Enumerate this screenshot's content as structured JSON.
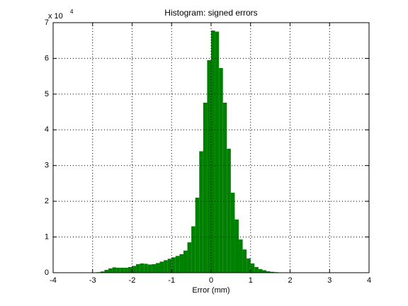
{
  "chart_data": {
    "type": "histogram",
    "title": "Histogram: signed errors",
    "x_label": "Error (mm)",
    "y_multiplier": "x 10",
    "y_multiplier_exponent": "4",
    "color": "#008000",
    "grid": true,
    "bins": [
      -4,
      -3.9,
      -3.8,
      -3.7,
      -3.6,
      -3.5,
      -3.4,
      -3.3,
      -3.2,
      -3.1,
      -3,
      -2.9,
      -2.8,
      -2.7,
      -2.6,
      -2.5,
      -2.4,
      -2.3,
      -2.2,
      -2.1,
      -2,
      -1.9,
      -1.8,
      -1.7,
      -1.6,
      -1.5,
      -1.4,
      -1.3,
      -1.2,
      -1.1,
      -1,
      -0.9,
      -0.8,
      -0.7,
      -0.6,
      -0.5,
      -0.4,
      -0.3,
      -0.2,
      -0.1,
      0,
      0.1,
      0.2,
      0.3,
      0.4,
      0.5,
      0.6,
      0.7,
      0.8,
      0.9,
      1,
      1.1,
      1.2,
      1.3,
      1.4,
      1.5,
      1.6,
      1.7,
      1.8,
      1.9,
      2,
      2.1,
      2.2,
      2.3,
      2.4,
      2.5,
      2.6,
      2.7,
      2.8,
      2.9,
      3,
      3.1,
      3.2,
      3.3,
      3.4,
      3.5,
      3.6,
      3.7,
      3.8,
      3.9,
      4
    ],
    "values": [
      0,
      0,
      0,
      0,
      0,
      0,
      0,
      10,
      20,
      40,
      80,
      150,
      350,
      800,
      1200,
      1500,
      1400,
      1400,
      1400,
      1600,
      1900,
      2400,
      2600,
      2500,
      2300,
      2400,
      2700,
      3100,
      3500,
      3900,
      4300,
      4700,
      5200,
      6200,
      8500,
      13000,
      21000,
      34000,
      47600,
      59500,
      67800,
      67500,
      57300,
      47600,
      34700,
      22400,
      14900,
      9300,
      6500,
      4000,
      2600,
      1600,
      1000,
      700,
      400,
      250,
      150,
      100,
      60,
      40,
      20,
      10,
      5,
      0,
      0,
      0,
      0,
      0,
      0,
      0,
      0,
      0,
      0,
      0,
      0,
      0,
      0,
      0,
      0,
      0
    ],
    "xlim": [
      -4,
      4
    ],
    "xticks": [
      -4,
      -3,
      -2,
      -1,
      0,
      1,
      2,
      3,
      4
    ],
    "ylim": [
      0,
      70000
    ],
    "yticks": [
      0,
      {
        "value": 10000,
        "label": "1"
      },
      {
        "value": 20000,
        "label": "2"
      },
      {
        "value": 30000,
        "label": "3"
      },
      {
        "value": 40000,
        "label": "4"
      },
      {
        "value": 50000,
        "label": "5"
      },
      {
        "value": 60000,
        "label": "6"
      },
      {
        "value": 70000,
        "label": "7"
      }
    ]
  }
}
